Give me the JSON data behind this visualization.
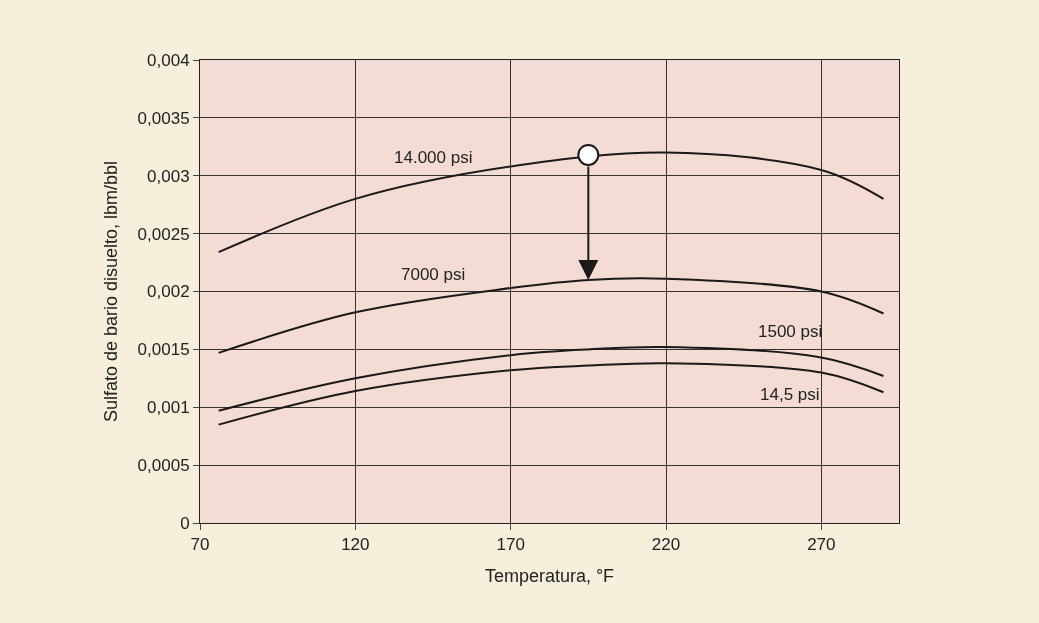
{
  "chart_data": {
    "type": "line",
    "xlabel": "Temperatura, °F",
    "ylabel": "Sulfato de bario disuelto, lbm/bbl",
    "xlim": [
      70,
      295
    ],
    "xticks": [
      70,
      120,
      170,
      220,
      270
    ],
    "ylim": [
      0,
      0.004
    ],
    "yticks": [
      {
        "value": 0,
        "label": "0"
      },
      {
        "value": 0.0005,
        "label": "0,0005"
      },
      {
        "value": 0.001,
        "label": "0,001"
      },
      {
        "value": 0.0015,
        "label": "0,0015"
      },
      {
        "value": 0.002,
        "label": "0,002"
      },
      {
        "value": 0.0025,
        "label": "0,0025"
      },
      {
        "value": 0.003,
        "label": "0,003"
      },
      {
        "value": 0.0035,
        "label": "0,0035"
      },
      {
        "value": 0.004,
        "label": "0,004"
      }
    ],
    "grid": true,
    "series": [
      {
        "name": "14.000 psi",
        "color": "#1a1a1a",
        "x": [
          76,
          120,
          170,
          220,
          270,
          290
        ],
        "values": [
          0.00234,
          0.0028,
          0.00308,
          0.0032,
          0.00305,
          0.0028
        ]
      },
      {
        "name": "7000 psi",
        "color": "#1a1a1a",
        "x": [
          76,
          120,
          170,
          195,
          220,
          270,
          290
        ],
        "values": [
          0.00147,
          0.00182,
          0.00203,
          0.0021,
          0.00211,
          0.002,
          0.00181
        ]
      },
      {
        "name": "1500 psi",
        "color": "#1a1a1a",
        "x": [
          76,
          120,
          170,
          195,
          220,
          270,
          290
        ],
        "values": [
          0.00097,
          0.00125,
          0.00145,
          0.0015,
          0.00152,
          0.00143,
          0.00127
        ]
      },
      {
        "name": "14,5 psi",
        "color": "#1a1a1a",
        "x": [
          76,
          120,
          170,
          195,
          220,
          270,
          290
        ],
        "values": [
          0.00085,
          0.00114,
          0.00132,
          0.00136,
          0.00138,
          0.0013,
          0.00113
        ]
      },
      {
        "type": "scatter",
        "color": "#ffffff",
        "marker": "circle",
        "x": [
          195
        ],
        "values": [
          0.00318
        ]
      }
    ]
  }
}
